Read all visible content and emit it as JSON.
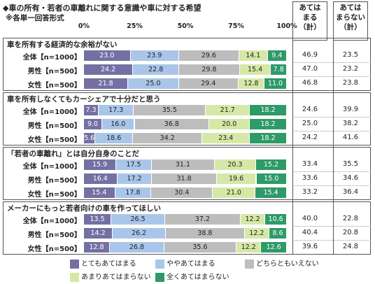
{
  "title": "◆車の所有・若者の車離れに関する意識や車に対する希望",
  "subtitle": "※各単一回答形式",
  "col_headers": [
    "あては\nまる\n（計）",
    "あては\nまらない\n（計）"
  ],
  "colors": [
    "#7470a4",
    "#a9c6ea",
    "#bdbdbd",
    "#d5e8a6",
    "#2e9a68"
  ],
  "chart_data": {
    "type": "bar",
    "orientation": "horizontal",
    "stacked": true,
    "xlim": [
      0,
      100
    ],
    "x_ticks": [
      "0%",
      "25%",
      "50%",
      "75%",
      "100%"
    ],
    "legend": [
      "とてもあてはまる",
      "ややあてはまる",
      "どちらともいえない",
      "あまりあてはまらない",
      "全くあてはまらない"
    ],
    "groups": [
      {
        "title": "車を所有する経済的な余裕がない",
        "rows": [
          {
            "label": "全体【n=1000】",
            "values": [
              23.0,
              23.9,
              29.6,
              14.1,
              9.4
            ],
            "labels": [
              "23.0",
              "23.9",
              "29.6",
              "14.1",
              "9.4"
            ],
            "agree": "46.9",
            "disagree": "23.5"
          },
          {
            "label": "男性【n=500】",
            "values": [
              24.2,
              22.8,
              29.8,
              15.4,
              7.8
            ],
            "labels": [
              "24.2",
              "22.8",
              "29.8",
              "15.4",
              "7.8"
            ],
            "agree": "47.0",
            "disagree": "23.2"
          },
          {
            "label": "女性【n=500】",
            "values": [
              21.8,
              25.0,
              29.4,
              12.8,
              11.0
            ],
            "labels": [
              "21.8",
              "25.0",
              "29.4",
              "12.8",
              "11.0"
            ],
            "agree": "46.8",
            "disagree": "23.8"
          }
        ]
      },
      {
        "title": "車を所有しなくてもカーシェアで十分だと思う",
        "rows": [
          {
            "label": "全体【n=1000】",
            "values": [
              7.3,
              17.3,
              35.5,
              21.7,
              18.2
            ],
            "labels": [
              "7.3",
              "17.3",
              "35.5",
              "21.7",
              "18.2"
            ],
            "agree": "24.6",
            "disagree": "39.9"
          },
          {
            "label": "男性【n=500】",
            "values": [
              9.0,
              16.0,
              36.8,
              20.0,
              18.2
            ],
            "labels": [
              "9.0",
              "16.0",
              "36.8",
              "20.0",
              "18.2"
            ],
            "agree": "25.0",
            "disagree": "38.2"
          },
          {
            "label": "女性【n=500】",
            "values": [
              5.6,
              18.6,
              34.2,
              23.4,
              18.2
            ],
            "labels": [
              "5.6",
              "18.6",
              "34.2",
              "23.4",
              "18.2"
            ],
            "agree": "24.2",
            "disagree": "41.6"
          }
        ]
      },
      {
        "title": "「若者の車離れ」とは自分自身のことだ",
        "rows": [
          {
            "label": "全体【n=1000】",
            "values": [
              15.9,
              17.5,
              31.1,
              20.3,
              15.2
            ],
            "labels": [
              "15.9",
              "17.5",
              "31.1",
              "20.3",
              "15.2"
            ],
            "agree": "33.4",
            "disagree": "35.5"
          },
          {
            "label": "男性【n=500】",
            "values": [
              16.4,
              17.2,
              31.8,
              19.6,
              15.0
            ],
            "labels": [
              "16.4",
              "17.2",
              "31.8",
              "19.6",
              "15.0"
            ],
            "agree": "33.6",
            "disagree": "34.6"
          },
          {
            "label": "女性【n=500】",
            "values": [
              15.4,
              17.8,
              30.4,
              21.0,
              15.4
            ],
            "labels": [
              "15.4",
              "17.8",
              "30.4",
              "21.0",
              "15.4"
            ],
            "agree": "33.2",
            "disagree": "36.4"
          }
        ]
      },
      {
        "title": "メーカーにもっと若者向けの車を作ってほしい",
        "rows": [
          {
            "label": "全体【n=1000】",
            "values": [
              13.5,
              26.5,
              37.2,
              12.2,
              10.6
            ],
            "labels": [
              "13.5",
              "26.5",
              "37.2",
              "12.2",
              "10.6"
            ],
            "agree": "40.0",
            "disagree": "22.8"
          },
          {
            "label": "男性【n=500】",
            "values": [
              14.2,
              26.2,
              38.8,
              12.2,
              8.6
            ],
            "labels": [
              "14.2",
              "26.2",
              "38.8",
              "12.2",
              "8.6"
            ],
            "agree": "40.4",
            "disagree": "20.8"
          },
          {
            "label": "女性【n=500】",
            "values": [
              12.8,
              26.8,
              35.6,
              12.2,
              12.6
            ],
            "labels": [
              "12.8",
              "26.8",
              "35.6",
              "12.2",
              "12.6"
            ],
            "agree": "39.6",
            "disagree": "24.8"
          }
        ]
      }
    ]
  }
}
